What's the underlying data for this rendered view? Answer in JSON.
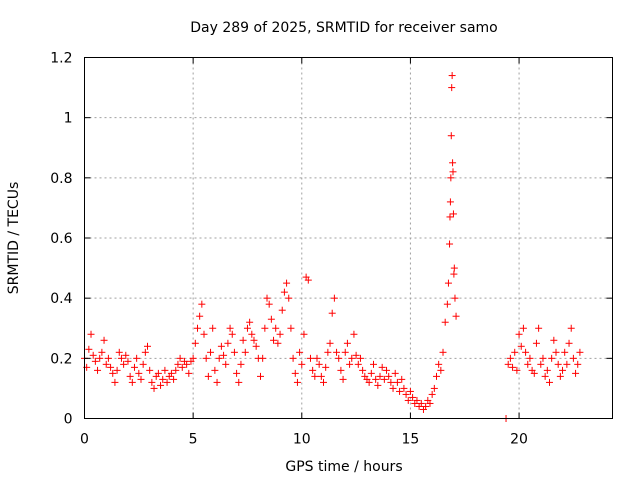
{
  "chart_data": {
    "type": "scatter",
    "title": "Day 289 of 2025, SRMTID for receiver samo",
    "xlabel": "GPS time / hours",
    "ylabel": "SRMTID / TECUs",
    "xlim": [
      0,
      24.3
    ],
    "ylim": [
      0,
      1.2
    ],
    "xticks": [
      0,
      5,
      10,
      15,
      20
    ],
    "xtick_labels": [
      "0",
      "5",
      "10",
      "15",
      "20"
    ],
    "yticks": [
      0,
      0.2,
      0.4,
      0.6,
      0.8,
      1.0,
      1.2
    ],
    "ytick_labels": [
      "0",
      "0.2",
      "0.4",
      "0.6",
      "0.8",
      "1",
      "1.2"
    ],
    "grid": true,
    "marker": "+",
    "color": "#ff0000",
    "series": [
      {
        "name": "SRMTID",
        "x": [
          0.0,
          0.1,
          0.2,
          0.3,
          0.4,
          0.5,
          0.6,
          0.7,
          0.8,
          0.9,
          1.0,
          1.1,
          1.2,
          1.3,
          1.4,
          1.5,
          1.6,
          1.7,
          1.8,
          1.9,
          2.0,
          2.1,
          2.2,
          2.3,
          2.4,
          2.5,
          2.6,
          2.7,
          2.8,
          2.9,
          3.0,
          3.1,
          3.2,
          3.3,
          3.4,
          3.5,
          3.6,
          3.7,
          3.8,
          3.9,
          4.0,
          4.1,
          4.2,
          4.3,
          4.4,
          4.5,
          4.6,
          4.7,
          4.8,
          4.9,
          5.0,
          5.1,
          5.2,
          5.3,
          5.4,
          5.5,
          5.6,
          5.7,
          5.8,
          5.9,
          6.0,
          6.1,
          6.2,
          6.3,
          6.4,
          6.5,
          6.6,
          6.7,
          6.8,
          6.9,
          7.0,
          7.1,
          7.2,
          7.3,
          7.4,
          7.5,
          7.6,
          7.7,
          7.8,
          7.9,
          8.0,
          8.1,
          8.2,
          8.3,
          8.4,
          8.5,
          8.6,
          8.7,
          8.8,
          8.9,
          9.0,
          9.1,
          9.2,
          9.3,
          9.4,
          9.5,
          9.6,
          9.7,
          9.8,
          9.9,
          10.0,
          10.1,
          10.2,
          10.3,
          10.4,
          10.5,
          10.6,
          10.7,
          10.8,
          10.9,
          11.0,
          11.1,
          11.2,
          11.3,
          11.4,
          11.5,
          11.6,
          11.7,
          11.8,
          11.9,
          12.0,
          12.1,
          12.2,
          12.3,
          12.4,
          12.5,
          12.6,
          12.7,
          12.8,
          12.9,
          13.0,
          13.1,
          13.2,
          13.3,
          13.4,
          13.5,
          13.6,
          13.7,
          13.8,
          13.9,
          14.0,
          14.1,
          14.2,
          14.3,
          14.4,
          14.5,
          14.6,
          14.7,
          14.8,
          14.9,
          15.0,
          15.1,
          15.2,
          15.3,
          15.4,
          15.5,
          15.6,
          15.7,
          15.8,
          15.9,
          16.0,
          16.1,
          16.2,
          16.3,
          16.4,
          16.5,
          16.6,
          16.7,
          16.75,
          16.8,
          16.82,
          16.84,
          16.86,
          16.88,
          16.9,
          16.92,
          16.94,
          16.96,
          16.98,
          17.0,
          17.02,
          17.05,
          17.1,
          19.4,
          19.5,
          19.6,
          19.7,
          19.8,
          19.9,
          20.0,
          20.1,
          20.2,
          20.3,
          20.4,
          20.5,
          20.6,
          20.7,
          20.8,
          20.9,
          21.0,
          21.1,
          21.2,
          21.3,
          21.4,
          21.5,
          21.6,
          21.7,
          21.8,
          21.9,
          22.0,
          22.1,
          22.2,
          22.3,
          22.4,
          22.5,
          22.6,
          22.7,
          22.8
        ],
        "y": [
          0.2,
          0.17,
          0.23,
          0.28,
          0.21,
          0.19,
          0.16,
          0.2,
          0.22,
          0.26,
          0.18,
          0.2,
          0.17,
          0.15,
          0.12,
          0.16,
          0.22,
          0.2,
          0.18,
          0.21,
          0.19,
          0.14,
          0.12,
          0.17,
          0.2,
          0.15,
          0.13,
          0.18,
          0.22,
          0.24,
          0.16,
          0.12,
          0.1,
          0.14,
          0.15,
          0.11,
          0.13,
          0.16,
          0.12,
          0.14,
          0.15,
          0.13,
          0.16,
          0.18,
          0.2,
          0.17,
          0.19,
          0.18,
          0.15,
          0.19,
          0.2,
          0.25,
          0.3,
          0.34,
          0.38,
          0.28,
          0.2,
          0.14,
          0.22,
          0.3,
          0.16,
          0.12,
          0.2,
          0.24,
          0.21,
          0.18,
          0.25,
          0.3,
          0.28,
          0.22,
          0.15,
          0.12,
          0.18,
          0.26,
          0.22,
          0.3,
          0.32,
          0.28,
          0.26,
          0.24,
          0.2,
          0.14,
          0.2,
          0.3,
          0.4,
          0.38,
          0.33,
          0.26,
          0.3,
          0.25,
          0.28,
          0.36,
          0.42,
          0.45,
          0.4,
          0.3,
          0.2,
          0.15,
          0.12,
          0.22,
          0.18,
          0.28,
          0.47,
          0.46,
          0.2,
          0.16,
          0.14,
          0.2,
          0.18,
          0.14,
          0.12,
          0.17,
          0.22,
          0.25,
          0.35,
          0.4,
          0.22,
          0.2,
          0.16,
          0.13,
          0.22,
          0.25,
          0.18,
          0.2,
          0.28,
          0.21,
          0.18,
          0.2,
          0.16,
          0.14,
          0.13,
          0.12,
          0.15,
          0.18,
          0.13,
          0.11,
          0.14,
          0.17,
          0.13,
          0.16,
          0.14,
          0.12,
          0.1,
          0.15,
          0.12,
          0.09,
          0.13,
          0.1,
          0.08,
          0.06,
          0.09,
          0.07,
          0.05,
          0.06,
          0.04,
          0.05,
          0.03,
          0.04,
          0.06,
          0.05,
          0.08,
          0.1,
          0.14,
          0.18,
          0.16,
          0.22,
          0.32,
          0.38,
          0.45,
          0.58,
          0.67,
          0.72,
          0.8,
          0.94,
          1.1,
          1.14,
          0.85,
          0.82,
          0.68,
          0.48,
          0.5,
          0.4,
          0.34,
          0.0,
          0.18,
          0.2,
          0.17,
          0.22,
          0.16,
          0.28,
          0.24,
          0.3,
          0.22,
          0.18,
          0.2,
          0.16,
          0.15,
          0.25,
          0.3,
          0.18,
          0.2,
          0.14,
          0.16,
          0.12,
          0.2,
          0.26,
          0.22,
          0.18,
          0.14,
          0.16,
          0.22,
          0.18,
          0.25,
          0.3,
          0.2,
          0.15,
          0.18,
          0.22
        ]
      }
    ]
  }
}
